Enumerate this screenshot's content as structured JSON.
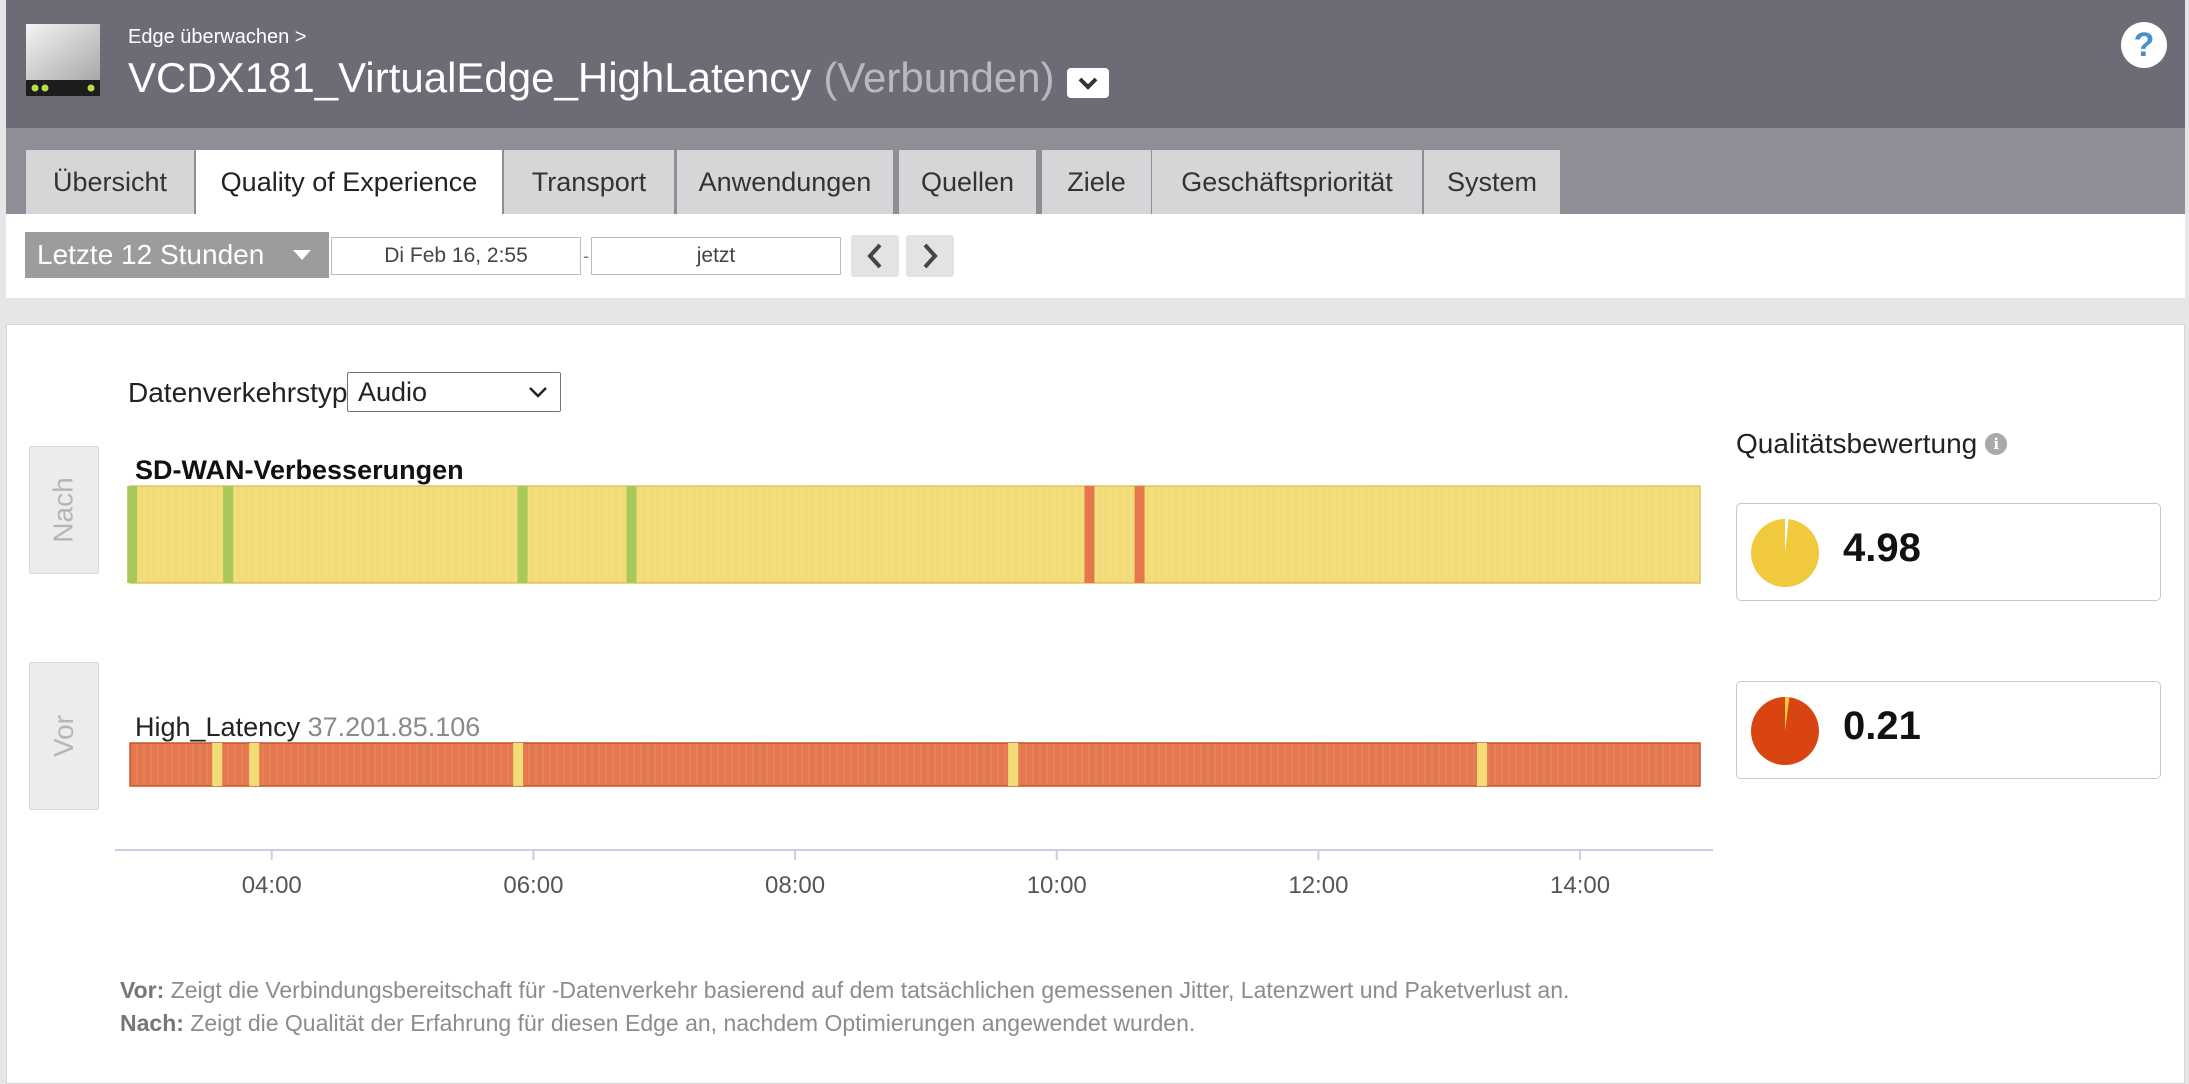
{
  "header": {
    "breadcrumb": "Edge überwachen >",
    "edge_name": "VCDX181_VirtualEdge_HighLatency",
    "edge_status": "(Verbunden)",
    "device_icon": "edge-device-icon",
    "help_icon": "help-icon",
    "help_label": "?"
  },
  "tabs": [
    {
      "label": "Übersicht",
      "active": false
    },
    {
      "label": "Quality of Experience",
      "active": true
    },
    {
      "label": "Transport",
      "active": false
    },
    {
      "label": "Anwendungen",
      "active": false
    },
    {
      "label": "Quellen",
      "active": false
    },
    {
      "label": "Ziele",
      "active": false
    },
    {
      "label": "Geschäftspriorität",
      "active": false
    },
    {
      "label": "System",
      "active": false
    }
  ],
  "timerange": {
    "selected": "Letzte 12 Stunden",
    "start": "Di Feb 16, 2:55",
    "separator": "-",
    "end": "jetzt"
  },
  "filter": {
    "label": "Datenverkehrstyp",
    "selected": "Audio"
  },
  "colors": {
    "good": "#a7c95a",
    "fair": "#f3dc78",
    "poor": "#e4774b",
    "score_fair": "#f0c93c",
    "score_poor": "#d84513"
  },
  "chart_data": {
    "type": "heatmap",
    "x_axis": {
      "start": "02:55",
      "end": "14:55",
      "ticks": [
        "04:00",
        "06:00",
        "08:00",
        "10:00",
        "12:00",
        "14:00"
      ]
    },
    "side_labels": {
      "after": "Nach",
      "before": "Vor"
    },
    "after": {
      "title": "SD-WAN-Verbesserungen",
      "base_quality": "fair",
      "events": [
        {
          "time": "02:56",
          "quality": "good"
        },
        {
          "time": "03:40",
          "quality": "good"
        },
        {
          "time": "05:55",
          "quality": "good"
        },
        {
          "time": "06:45",
          "quality": "good"
        },
        {
          "time": "10:15",
          "quality": "poor"
        },
        {
          "time": "10:38",
          "quality": "poor"
        }
      ],
      "score": 4.98
    },
    "before": {
      "title": "High_Latency",
      "ip": "37.201.85.106",
      "base_quality": "poor",
      "events": [
        {
          "time": "03:35",
          "quality": "fair"
        },
        {
          "time": "03:52",
          "quality": "fair"
        },
        {
          "time": "05:53",
          "quality": "fair"
        },
        {
          "time": "09:40",
          "quality": "fair"
        },
        {
          "time": "13:15",
          "quality": "fair"
        }
      ],
      "score": 0.21
    }
  },
  "quality_score": {
    "title": "Qualitätsbewertung",
    "info_icon": "info-icon",
    "after_value": "4.98",
    "before_value": "0.21"
  },
  "legend": {
    "vor_label": "Vor:",
    "vor_text": " Zeigt die Verbindungsbereitschaft für -Datenverkehr basierend auf dem tatsächlichen gemessenen Jitter, Latenzwert und Paketverlust an.",
    "nach_label": "Nach:",
    "nach_text": " Zeigt die Qualität der Erfahrung für diesen Edge an, nachdem Optimierungen angewendet wurden."
  }
}
